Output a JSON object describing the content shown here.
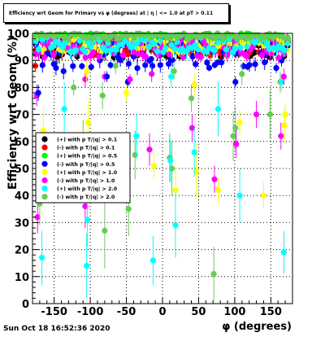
{
  "chart_data": {
    "type": "scatter",
    "title": "Efficiency wrt Geom for Primary vs φ (degrees) at | η | <= 1.0 at pT > 0.11",
    "xlabel": "φ (degrees)",
    "ylabel": "Efficiency wrt Geom (%)",
    "xlim": [
      -180,
      180
    ],
    "ylim": [
      0,
      100
    ],
    "x_ticks": [
      -150,
      -100,
      -50,
      0,
      50,
      100,
      150
    ],
    "y_ticks": [
      0,
      10,
      20,
      30,
      40,
      50,
      60,
      70,
      80,
      90,
      100
    ],
    "grid": true,
    "legend_position": "lower-left",
    "series": [
      {
        "name": "(+) with p T/|q| > 0.1",
        "color": "#000000",
        "marker": "circle"
      },
      {
        "name": "(-) with p T/|q| > 0.1",
        "color": "#ff0000",
        "marker": "circle"
      },
      {
        "name": "(+) with p T/|q| > 0.5",
        "color": "#00ff00",
        "marker": "circle"
      },
      {
        "name": "(-) with p T/|q| > 0.5",
        "color": "#0000ff",
        "marker": "circle"
      },
      {
        "name": "(+) with p T/|q| > 1.0",
        "color": "#ffff00",
        "marker": "circle"
      },
      {
        "name": "(-) with p T/|q| > 1.0",
        "color": "#ff00ff",
        "marker": "circle"
      },
      {
        "name": "(+) with p T/|q| > 2.0",
        "color": "#00ffff",
        "marker": "circle"
      },
      {
        "name": "(-) with p T/|q| > 2.0",
        "color": "#66cc55",
        "marker": "circle"
      }
    ],
    "bands": [
      {
        "series": 0,
        "level": 94,
        "spread": 3
      },
      {
        "series": 1,
        "level": 95,
        "spread": 3
      },
      {
        "series": 2,
        "level": 99,
        "spread": 1
      },
      {
        "series": 3,
        "level": 93,
        "spread": 6
      },
      {
        "series": 4,
        "level": 96,
        "spread": 3
      },
      {
        "series": 5,
        "level": 95,
        "spread": 4
      },
      {
        "series": 6,
        "level": 96,
        "spread": 3
      },
      {
        "series": 7,
        "level": 99,
        "spread": 1
      }
    ],
    "scattered_points": [
      {
        "series": 6,
        "x": -167,
        "y": 17,
        "err": 10
      },
      {
        "series": 5,
        "x": -173,
        "y": 32,
        "err": 6
      },
      {
        "series": 7,
        "x": -170,
        "y": 37,
        "err": 8
      },
      {
        "series": 4,
        "x": -165,
        "y": 64,
        "err": 8
      },
      {
        "series": 5,
        "x": -174,
        "y": 77,
        "err": 4
      },
      {
        "series": 3,
        "x": -172,
        "y": 78,
        "err": 3
      },
      {
        "series": 1,
        "x": -176,
        "y": 88,
        "err": 2
      },
      {
        "series": 6,
        "x": -136,
        "y": 72,
        "err": 10
      },
      {
        "series": 7,
        "x": -123,
        "y": 80,
        "err": 3
      },
      {
        "series": 3,
        "x": -137,
        "y": 86,
        "err": 3
      },
      {
        "series": 5,
        "x": -107,
        "y": 83,
        "err": 3
      },
      {
        "series": 7,
        "x": -110,
        "y": 58,
        "err": 10
      },
      {
        "series": 5,
        "x": -107,
        "y": 36,
        "err": 8
      },
      {
        "series": 6,
        "x": -104,
        "y": 31,
        "err": 10
      },
      {
        "series": 6,
        "x": -105,
        "y": 14,
        "err": 12
      },
      {
        "series": 4,
        "x": -103,
        "y": 67,
        "err": 8
      },
      {
        "series": 4,
        "x": -105,
        "y": 86,
        "err": 4
      },
      {
        "series": 7,
        "x": -80,
        "y": 27,
        "err": 14
      },
      {
        "series": 7,
        "x": -83,
        "y": 77,
        "err": 5
      },
      {
        "series": 5,
        "x": -80,
        "y": 84,
        "err": 2
      },
      {
        "series": 3,
        "x": -77,
        "y": 84,
        "err": 2
      },
      {
        "series": 7,
        "x": -65,
        "y": 88,
        "err": 3
      },
      {
        "series": 4,
        "x": -50,
        "y": 78,
        "err": 3
      },
      {
        "series": 7,
        "x": -47,
        "y": 35,
        "err": 10
      },
      {
        "series": 3,
        "x": -48,
        "y": 82,
        "err": 2
      },
      {
        "series": 5,
        "x": -45,
        "y": 83,
        "err": 2
      },
      {
        "series": 7,
        "x": -38,
        "y": 55,
        "err": 9
      },
      {
        "series": 6,
        "x": -36,
        "y": 62,
        "err": 8
      },
      {
        "series": 5,
        "x": -18,
        "y": 57,
        "err": 6
      },
      {
        "series": 3,
        "x": -14,
        "y": 88,
        "err": 2
      },
      {
        "series": 4,
        "x": -12,
        "y": 51,
        "err": 5
      },
      {
        "series": 6,
        "x": -13,
        "y": 16,
        "err": 9
      },
      {
        "series": 5,
        "x": -15,
        "y": 85,
        "err": 3
      },
      {
        "series": 7,
        "x": 10,
        "y": 54,
        "err": 9
      },
      {
        "series": 7,
        "x": 13,
        "y": 50,
        "err": 10
      },
      {
        "series": 6,
        "x": 11,
        "y": 53,
        "err": 8
      },
      {
        "series": 4,
        "x": 18,
        "y": 42,
        "err": 10
      },
      {
        "series": 6,
        "x": 18,
        "y": 29,
        "err": 12
      },
      {
        "series": 7,
        "x": 16,
        "y": 86,
        "err": 3
      },
      {
        "series": 6,
        "x": 12,
        "y": 84,
        "err": 4
      },
      {
        "series": 4,
        "x": 44,
        "y": 81,
        "err": 4
      },
      {
        "series": 4,
        "x": 47,
        "y": 49,
        "err": 10
      },
      {
        "series": 7,
        "x": 40,
        "y": 76,
        "err": 5
      },
      {
        "series": 5,
        "x": 41,
        "y": 65,
        "err": 5
      },
      {
        "series": 6,
        "x": 44,
        "y": 56,
        "err": 9
      },
      {
        "series": 5,
        "x": 72,
        "y": 46,
        "err": 5
      },
      {
        "series": 7,
        "x": 71,
        "y": 11,
        "err": 10
      },
      {
        "series": 6,
        "x": 77,
        "y": 72,
        "err": 10
      },
      {
        "series": 4,
        "x": 77,
        "y": 42,
        "err": 5
      },
      {
        "series": 7,
        "x": 98,
        "y": 62,
        "err": 9
      },
      {
        "series": 7,
        "x": 101,
        "y": 65,
        "err": 8
      },
      {
        "series": 5,
        "x": 102,
        "y": 59,
        "err": 5
      },
      {
        "series": 4,
        "x": 107,
        "y": 67,
        "err": 5
      },
      {
        "series": 6,
        "x": 107,
        "y": 40,
        "err": 10
      },
      {
        "series": 3,
        "x": 101,
        "y": 82,
        "err": 2
      },
      {
        "series": 7,
        "x": 110,
        "y": 85,
        "err": 4
      },
      {
        "series": 5,
        "x": 130,
        "y": 70,
        "err": 5
      },
      {
        "series": 4,
        "x": 140,
        "y": 40,
        "err": 5
      },
      {
        "series": 7,
        "x": 149,
        "y": 70,
        "err": 9
      },
      {
        "series": 5,
        "x": 164,
        "y": 62,
        "err": 5
      },
      {
        "series": 6,
        "x": 168,
        "y": 19,
        "err": 8
      },
      {
        "series": 7,
        "x": 163,
        "y": 82,
        "err": 4
      },
      {
        "series": 4,
        "x": 170,
        "y": 70,
        "err": 4
      },
      {
        "series": 4,
        "x": 169,
        "y": 66,
        "err": 6
      },
      {
        "series": 6,
        "x": 165,
        "y": 82,
        "err": 3
      },
      {
        "series": 5,
        "x": 168,
        "y": 84,
        "err": 3
      }
    ]
  },
  "footer": {
    "date": "Sun Oct 18 16:52:36 2020"
  }
}
